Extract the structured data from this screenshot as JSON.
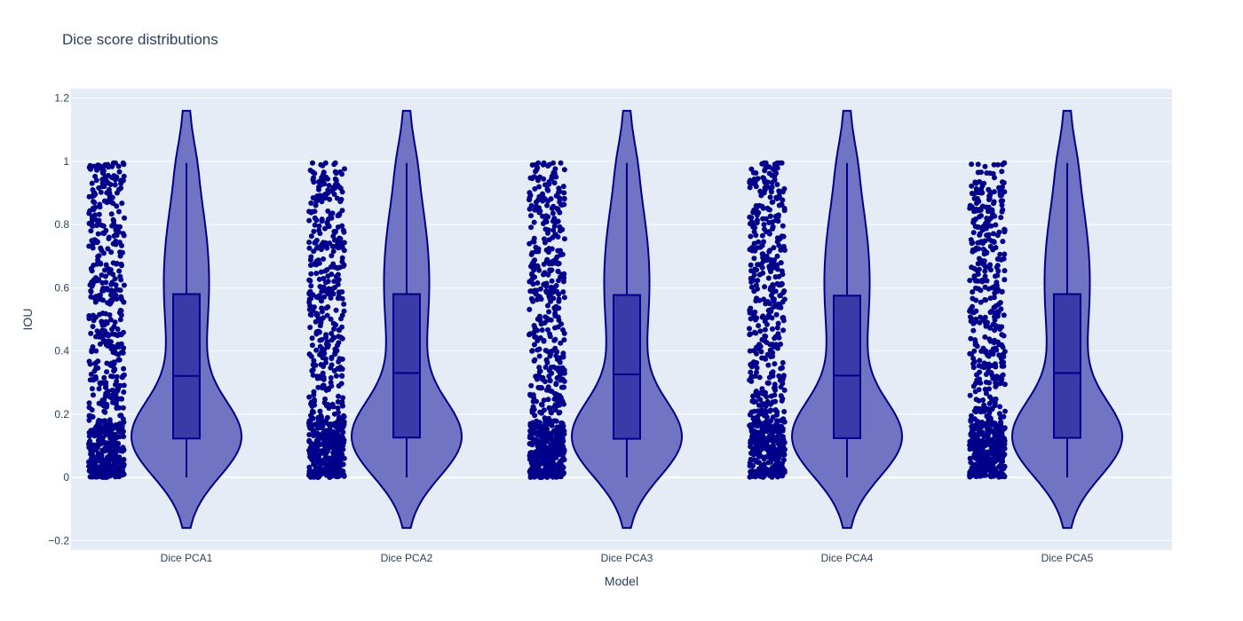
{
  "chart_data": {
    "type": "violin",
    "title": "Dice score distributions",
    "xlabel": "Model",
    "ylabel": "IOU",
    "categories": [
      "Dice PCA1",
      "Dice PCA2",
      "Dice PCA3",
      "Dice PCA4",
      "Dice PCA5"
    ],
    "ylim": [
      -0.23,
      1.23
    ],
    "yticks": [
      -0.2,
      0,
      0.2,
      0.4,
      0.6,
      0.8,
      1,
      1.2
    ],
    "ytick_labels": [
      "−0.2",
      "0",
      "0.2",
      "0.4",
      "0.6",
      "0.8",
      "1",
      "1.2"
    ],
    "grid": true,
    "points_shown": "all",
    "violin_range": [
      -0.16,
      1.16
    ],
    "series": [
      {
        "name": "Dice PCA1",
        "min": 0.0,
        "q1": 0.123,
        "median": 0.321,
        "q3": 0.58,
        "max": 0.995
      },
      {
        "name": "Dice PCA2",
        "min": 0.0,
        "q1": 0.126,
        "median": 0.33,
        "q3": 0.58,
        "max": 0.995
      },
      {
        "name": "Dice PCA3",
        "min": 0.0,
        "q1": 0.122,
        "median": 0.326,
        "q3": 0.577,
        "max": 0.995
      },
      {
        "name": "Dice PCA4",
        "min": 0.0,
        "q1": 0.124,
        "median": 0.322,
        "q3": 0.575,
        "max": 0.995
      },
      {
        "name": "Dice PCA5",
        "min": 0.0,
        "q1": 0.125,
        "median": 0.33,
        "q3": 0.58,
        "max": 0.995
      }
    ],
    "colors": {
      "line": "#00008b",
      "violin_fill": "#7074c2",
      "box_fill": "#3a3aa8",
      "points": "#00008b",
      "plot_bg": "#e5ecf6",
      "grid": "#ffffff",
      "text": "#2a3f5f"
    }
  }
}
